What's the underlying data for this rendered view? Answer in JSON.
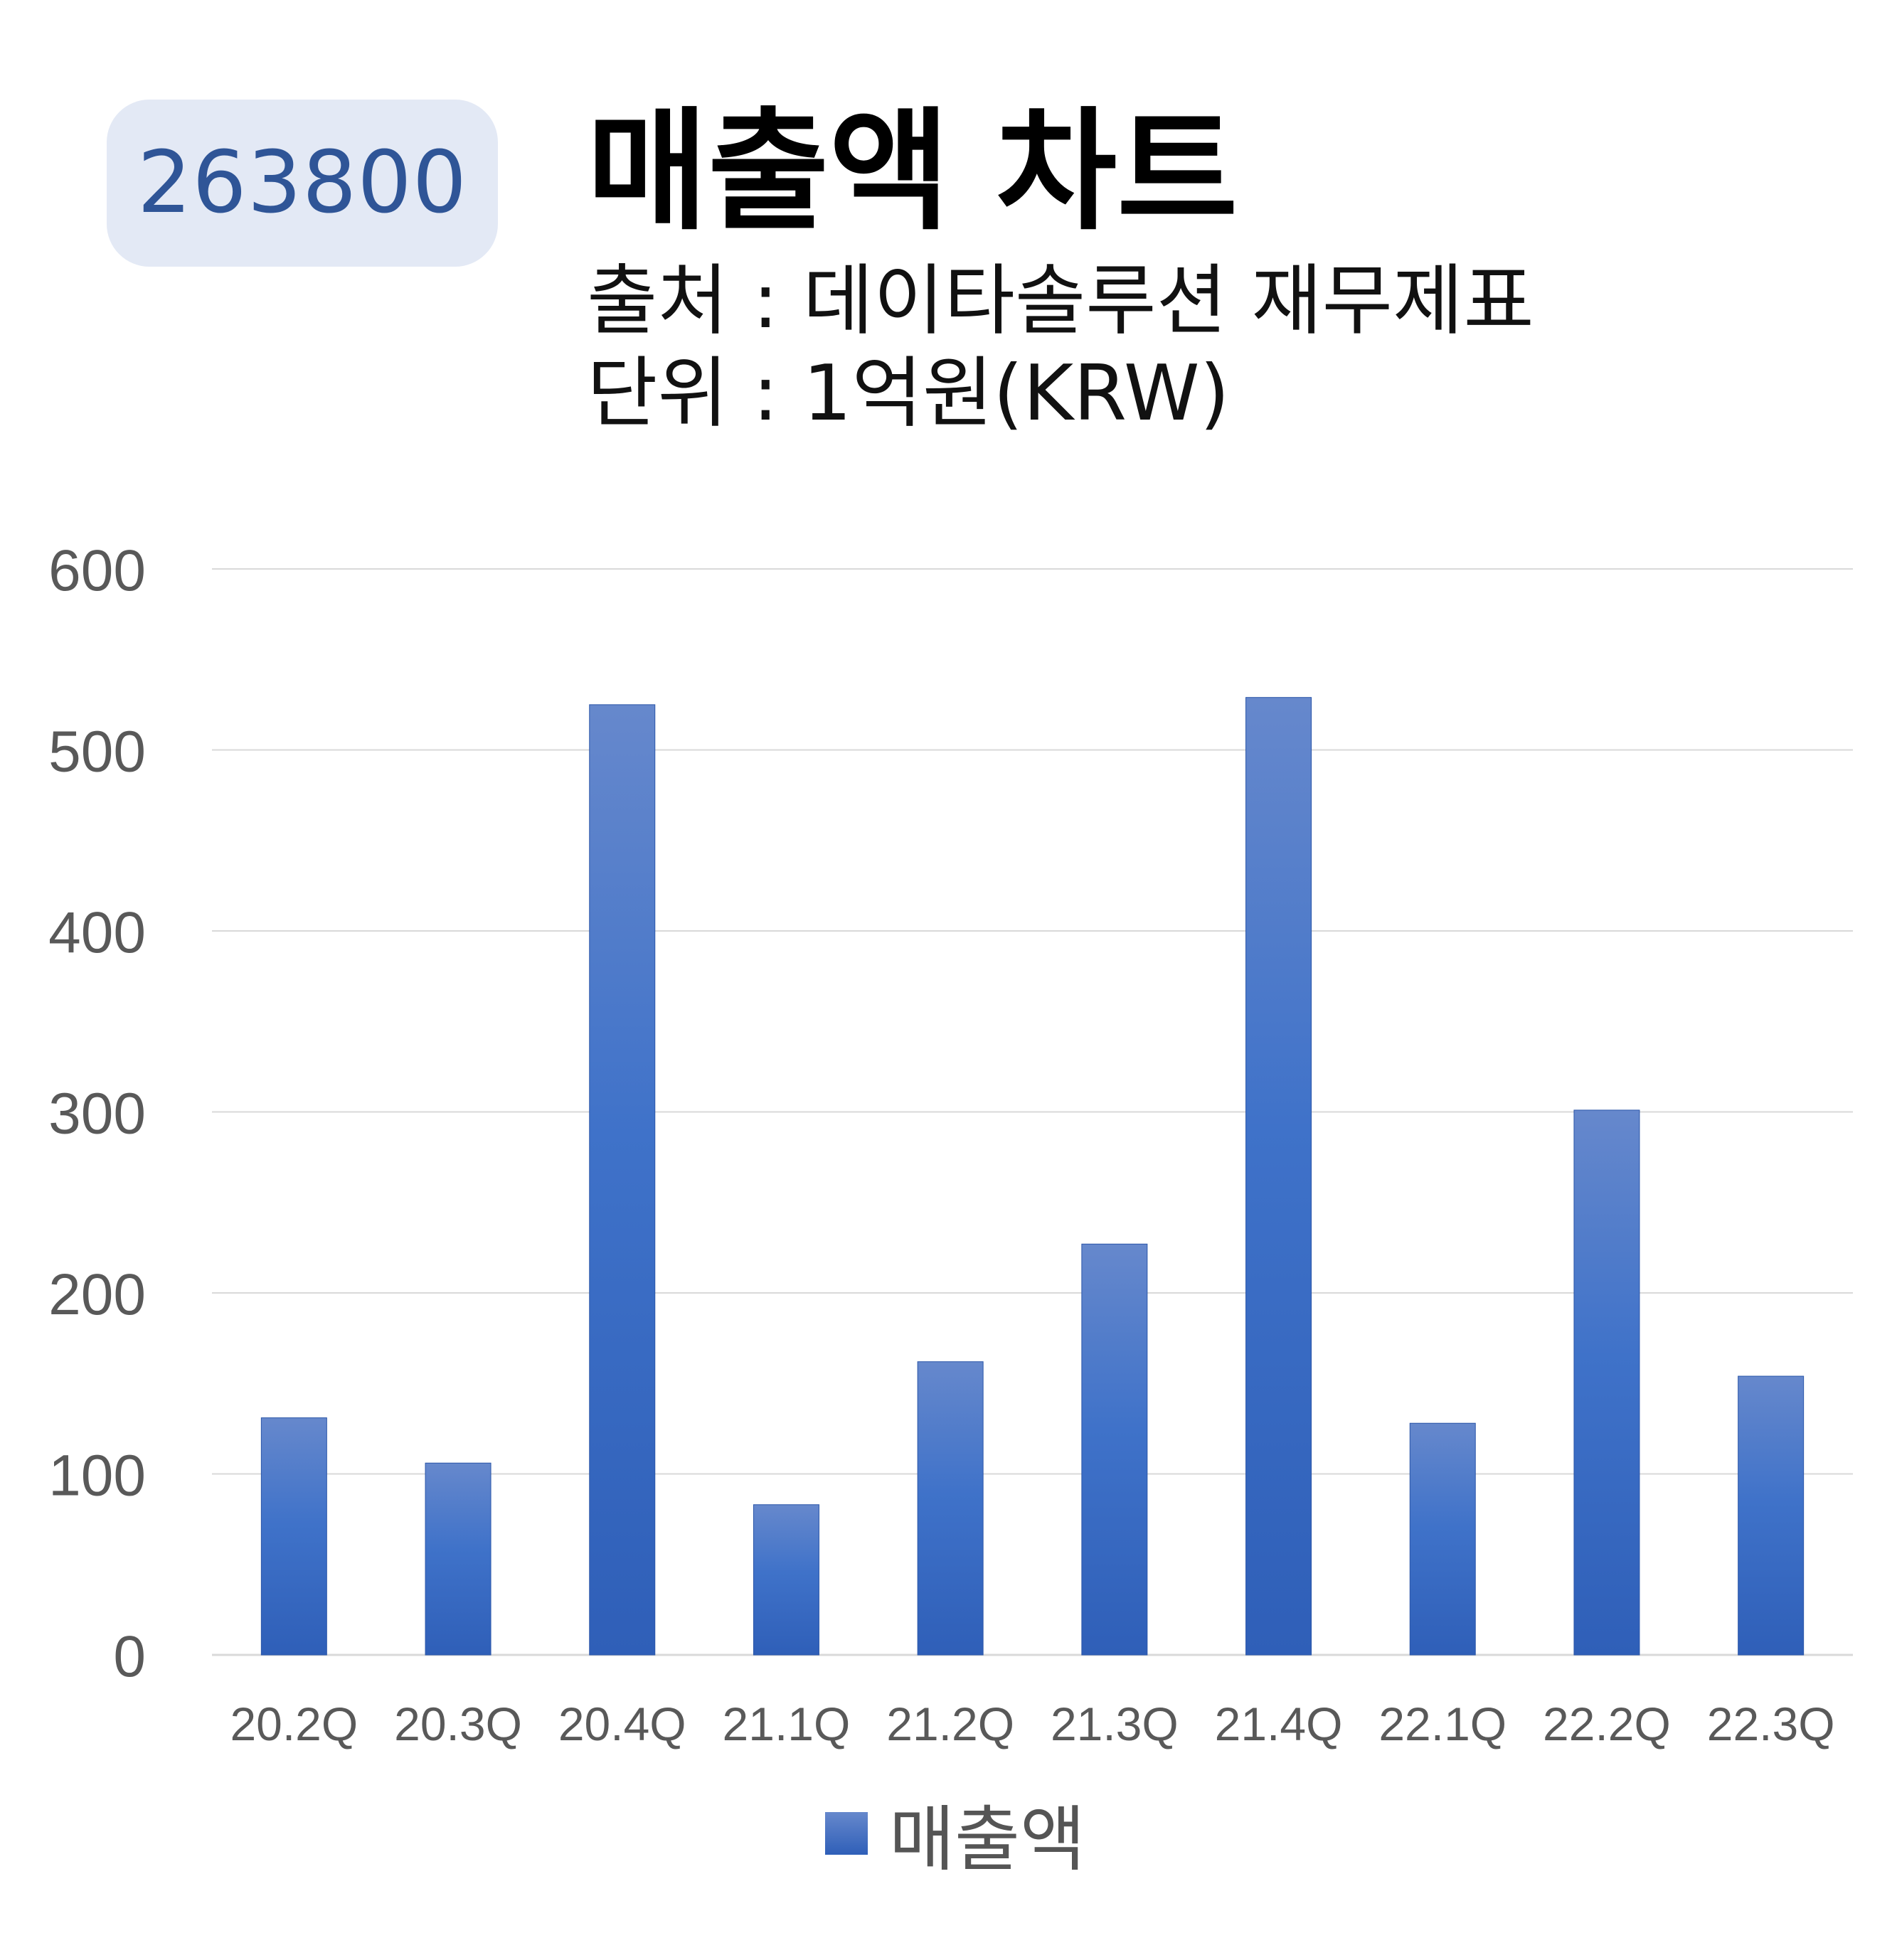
{
  "header": {
    "code": "263800",
    "title": "매출액 차트",
    "source": "출처 : 데이타솔루션 재무제표",
    "unit": "단위 : 1억원(KRW)"
  },
  "colors": {
    "badge_bg": "#e3e9f5",
    "badge_text": "#2f5597",
    "bar_top": "#6688cc",
    "bar_mid": "#3f72c9",
    "bar_bottom": "#2f5fb8",
    "grid": "#d9d9d9",
    "axis_text": "#595959"
  },
  "chart_data": {
    "type": "bar",
    "title": "매출액 차트",
    "categories": [
      "20.2Q",
      "20.3Q",
      "20.4Q",
      "21.1Q",
      "21.2Q",
      "21.3Q",
      "21.4Q",
      "22.1Q",
      "22.2Q",
      "22.3Q"
    ],
    "series": [
      {
        "name": "매출액",
        "values": [
          131,
          106,
          525,
          83,
          162,
          227,
          529,
          128,
          301,
          154
        ]
      }
    ],
    "ylim": [
      0,
      600
    ],
    "yticks": [
      0,
      100,
      200,
      300,
      400,
      500,
      600
    ],
    "grid": true,
    "legend_position": "bottom"
  }
}
